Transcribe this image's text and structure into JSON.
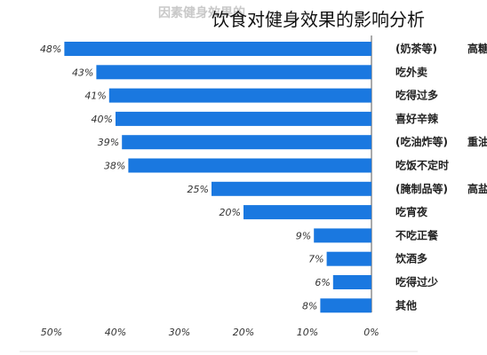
{
  "ghost_title": "因素健身效果的",
  "overlay_title": "饮食对健身效果的影响分析",
  "chart_data": {
    "type": "bar",
    "orientation": "horizontal",
    "x_reversed": true,
    "xlim": [
      0,
      50
    ],
    "x_ticks": [
      {
        "value": 50,
        "label": "50%"
      },
      {
        "value": 40,
        "label": "40%"
      },
      {
        "value": 30,
        "label": "30%"
      },
      {
        "value": 20,
        "label": "20%"
      },
      {
        "value": 10,
        "label": "10%"
      },
      {
        "value": 0,
        "label": "0%"
      }
    ],
    "bar_color": "#1a78e0",
    "grid": false,
    "rows": [
      {
        "group": "高糖",
        "category": "(奶茶等)",
        "value": 48,
        "label": "48%"
      },
      {
        "group": "",
        "category": "吃外卖",
        "value": 43,
        "label": "43%"
      },
      {
        "group": "",
        "category": "吃得过多",
        "value": 41,
        "label": "41%"
      },
      {
        "group": "",
        "category": "喜好辛辣",
        "value": 40,
        "label": "40%"
      },
      {
        "group": "重油",
        "category": "(吃油炸等)",
        "value": 39,
        "label": "39%"
      },
      {
        "group": "",
        "category": "吃饭不定时",
        "value": 38,
        "label": "38%"
      },
      {
        "group": "高盐",
        "category": "(腌制品等)",
        "value": 25,
        "label": "25%"
      },
      {
        "group": "",
        "category": "吃宵夜",
        "value": 20,
        "label": "20%"
      },
      {
        "group": "",
        "category": "不吃正餐",
        "value": 9,
        "label": "9%"
      },
      {
        "group": "",
        "category": "饮酒多",
        "value": 7,
        "label": "7%"
      },
      {
        "group": "",
        "category": "吃得过少",
        "value": 6,
        "label": "6%"
      },
      {
        "group": "",
        "category": "其他",
        "value": 8,
        "label": "8%"
      }
    ]
  }
}
